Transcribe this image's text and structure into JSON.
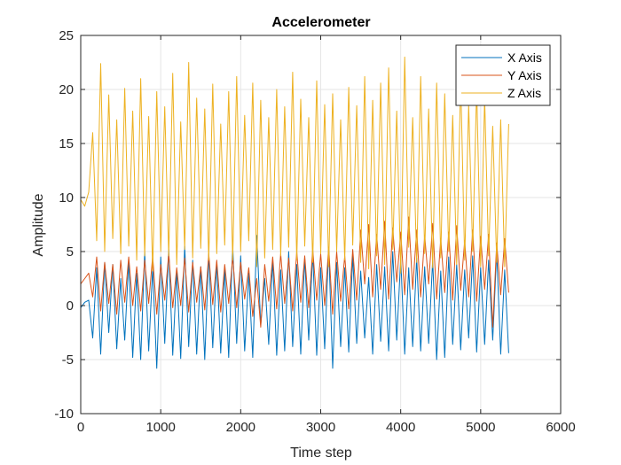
{
  "chart_data": {
    "type": "line",
    "title": "Accelerometer",
    "xlabel": "Time step",
    "ylabel": "Amplitude",
    "xlim": [
      0,
      6000
    ],
    "ylim": [
      -10,
      25
    ],
    "xticks": [
      0,
      1000,
      2000,
      3000,
      4000,
      5000,
      6000
    ],
    "yticks": [
      -10,
      -5,
      0,
      5,
      10,
      15,
      20,
      25
    ],
    "grid": true,
    "legend_position": "top-right",
    "x": [
      0,
      50,
      100,
      150,
      200,
      250,
      300,
      350,
      400,
      450,
      500,
      550,
      600,
      650,
      700,
      750,
      800,
      850,
      900,
      950,
      1000,
      1050,
      1100,
      1150,
      1200,
      1250,
      1300,
      1350,
      1400,
      1450,
      1500,
      1550,
      1600,
      1650,
      1700,
      1750,
      1800,
      1850,
      1900,
      1950,
      2000,
      2050,
      2100,
      2150,
      2200,
      2250,
      2300,
      2350,
      2400,
      2450,
      2500,
      2550,
      2600,
      2650,
      2700,
      2750,
      2800,
      2850,
      2900,
      2950,
      3000,
      3050,
      3100,
      3150,
      3200,
      3250,
      3300,
      3350,
      3400,
      3450,
      3500,
      3550,
      3600,
      3650,
      3700,
      3750,
      3800,
      3850,
      3900,
      3950,
      4000,
      4050,
      4100,
      4150,
      4200,
      4250,
      4300,
      4350,
      4400,
      4450,
      4500,
      4550,
      4600,
      4650,
      4700,
      4750,
      4800,
      4850,
      4900,
      4950,
      5000,
      5050,
      5100,
      5150,
      5200,
      5250,
      5300,
      5350
    ],
    "series": [
      {
        "name": "X Axis",
        "color": "#0072BD",
        "values": [
          -0.2,
          0.3,
          0.5,
          -3.0,
          3.5,
          -4.5,
          4.0,
          -2.5,
          3.8,
          -4.0,
          2.5,
          -3.2,
          4.2,
          -4.8,
          3.0,
          -5.0,
          5.0,
          -4.2,
          3.5,
          -5.8,
          4.5,
          -3.5,
          5.2,
          -4.6,
          3.2,
          -4.9,
          5.5,
          -3.8,
          4.2,
          -4.5,
          3.6,
          -5.0,
          4.8,
          -3.9,
          4.0,
          -4.4,
          3.3,
          -4.8,
          5.6,
          -3.5,
          4.6,
          -4.2,
          3.0,
          -4.8,
          6.5,
          -1.8,
          2.5,
          -3.6,
          4.2,
          -4.6,
          3.3,
          -4.2,
          5.0,
          -3.8,
          3.8,
          -4.5,
          4.4,
          -3.2,
          4.9,
          -4.6,
          3.5,
          -4.0,
          5.4,
          -5.8,
          4.0,
          -3.8,
          3.5,
          -4.3,
          4.6,
          -3.5,
          3.2,
          -3.0,
          2.6,
          -4.5,
          3.8,
          -3.3,
          3.6,
          -4.2,
          5.0,
          -3.2,
          4.4,
          -4.5,
          3.5,
          -3.8,
          4.4,
          -4.2,
          3.6,
          -3.5,
          4.2,
          -5.0,
          3.2,
          -4.8,
          4.5,
          -3.6,
          3.8,
          -4.1,
          3.3,
          -3.0,
          4.6,
          -4.3,
          3.5,
          -3.6,
          4.2,
          -3.2,
          5.0,
          -4.5,
          3.3,
          -4.4
        ]
      },
      {
        "name": "Y Axis",
        "color": "#D95319",
        "values": [
          2.0,
          2.5,
          3.0,
          0.8,
          4.5,
          -0.5,
          4.0,
          0.2,
          3.8,
          -0.8,
          4.2,
          0.3,
          4.5,
          0.0,
          3.6,
          -0.5,
          4.2,
          0.2,
          4.6,
          -0.8,
          3.8,
          0.5,
          4.8,
          -0.2,
          3.5,
          0.0,
          4.4,
          -0.6,
          4.0,
          0.3,
          3.6,
          -0.4,
          4.8,
          0.1,
          4.2,
          -0.6,
          3.8,
          0.2,
          4.5,
          -0.2,
          4.0,
          0.6,
          3.5,
          -1.0,
          2.5,
          -2.0,
          3.8,
          0.4,
          4.5,
          -0.3,
          4.8,
          0.2,
          4.4,
          -0.5,
          5.0,
          0.3,
          4.6,
          -0.2,
          5.2,
          0.5,
          4.8,
          0.0,
          5.4,
          -0.8,
          5.0,
          0.4,
          4.6,
          -0.3,
          5.2,
          0.5,
          7.0,
          2.0,
          7.5,
          0.8,
          6.6,
          1.5,
          7.8,
          0.6,
          7.2,
          2.2,
          6.8,
          1.0,
          8.2,
          1.5,
          7.0,
          0.8,
          6.5,
          2.0,
          7.6,
          0.6,
          6.2,
          1.2,
          6.8,
          0.5,
          7.4,
          1.4,
          6.0,
          0.8,
          7.0,
          0.4,
          6.4,
          1.5,
          6.6,
          -2.0,
          5.8,
          1.0,
          6.2,
          1.2
        ]
      },
      {
        "name": "Z Axis",
        "color": "#EDB120",
        "values": [
          9.8,
          9.2,
          10.5,
          16.0,
          6.0,
          22.4,
          5.0,
          19.5,
          6.2,
          17.2,
          4.8,
          20.1,
          5.5,
          18.0,
          4.2,
          21.0,
          4.6,
          17.5,
          3.2,
          19.8,
          5.0,
          18.4,
          4.6,
          21.5,
          3.8,
          17.0,
          5.2,
          22.5,
          4.4,
          19.2,
          5.3,
          18.2,
          4.2,
          20.5,
          4.8,
          16.8,
          5.6,
          19.8,
          4.2,
          21.2,
          5.0,
          17.6,
          6.0,
          20.6,
          3.6,
          19.0,
          4.4,
          17.4,
          5.2,
          20.0,
          4.6,
          18.4,
          5.4,
          21.6,
          4.2,
          19.1,
          5.5,
          17.4,
          4.0,
          20.8,
          4.8,
          18.6,
          3.6,
          19.6,
          5.0,
          17.2,
          4.2,
          20.2,
          5.6,
          18.5,
          4.0,
          21.2,
          3.4,
          19.0,
          4.6,
          20.6,
          3.8,
          22.0,
          5.2,
          18.0,
          3.0,
          23.0,
          5.4,
          17.4,
          4.0,
          21.2,
          4.8,
          18.2,
          3.5,
          20.6,
          4.4,
          19.6,
          5.0,
          17.6,
          3.8,
          21.0,
          4.2,
          18.6,
          5.0,
          20.2,
          3.6,
          19.2,
          4.6,
          16.6,
          4.0,
          17.2,
          3.6,
          16.8
        ]
      }
    ]
  }
}
